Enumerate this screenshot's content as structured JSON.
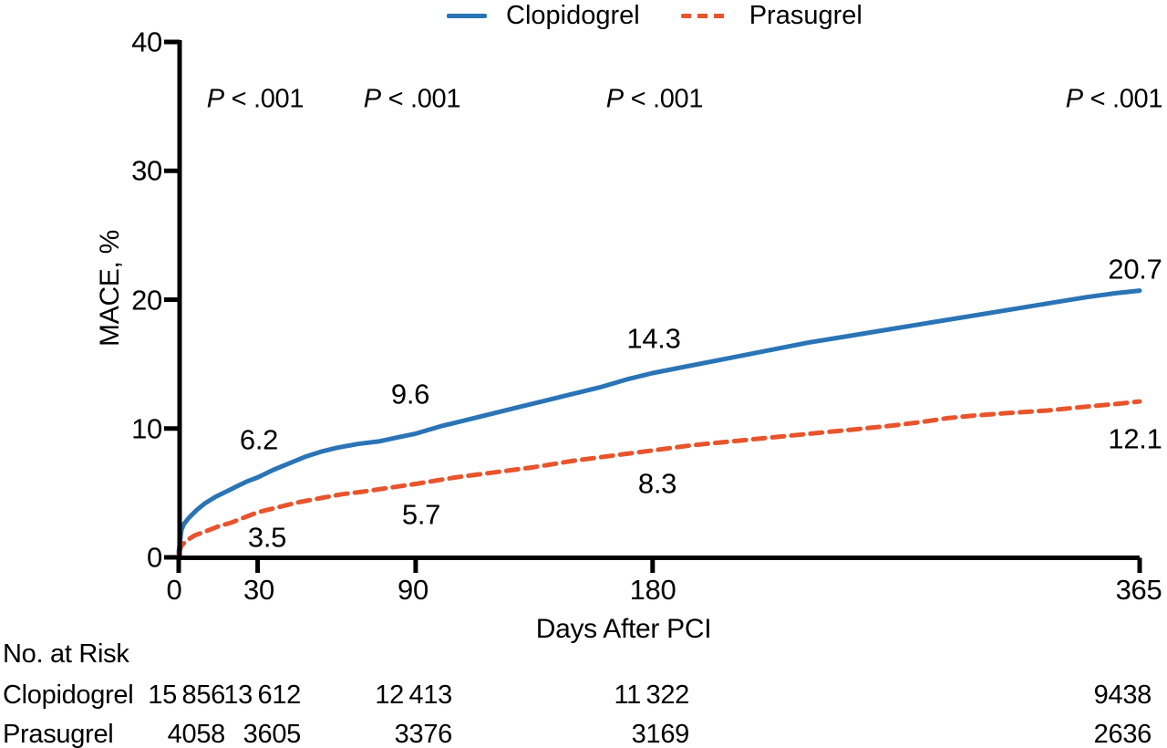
{
  "chart_data": {
    "type": "line",
    "title": "",
    "xlabel": "Days After PCI",
    "ylabel": "MACE, %",
    "xlim": [
      0,
      365
    ],
    "ylim": [
      0,
      40
    ],
    "x_ticks": [
      0,
      30,
      90,
      180,
      365
    ],
    "y_ticks": [
      0,
      10,
      20,
      30,
      40
    ],
    "grid": false,
    "legend_position": "top-center",
    "series": [
      {
        "name": "Clopidogrel",
        "color": "#2A74B6",
        "line_style": "solid",
        "labeled_values": {
          "day_30": 6.2,
          "day_90": 9.6,
          "day_180": 14.3,
          "day_365": 20.7
        },
        "points": [
          [
            0,
            0.4
          ],
          [
            1,
            2.1
          ],
          [
            2,
            2.6
          ],
          [
            4,
            3.1
          ],
          [
            7,
            3.7
          ],
          [
            10,
            4.2
          ],
          [
            14,
            4.7
          ],
          [
            18,
            5.1
          ],
          [
            22,
            5.5
          ],
          [
            26,
            5.9
          ],
          [
            30,
            6.2
          ],
          [
            36,
            6.8
          ],
          [
            42,
            7.3
          ],
          [
            48,
            7.8
          ],
          [
            54,
            8.2
          ],
          [
            60,
            8.5
          ],
          [
            68,
            8.8
          ],
          [
            76,
            9.0
          ],
          [
            83,
            9.3
          ],
          [
            90,
            9.6
          ],
          [
            100,
            10.2
          ],
          [
            110,
            10.7
          ],
          [
            120,
            11.2
          ],
          [
            130,
            11.7
          ],
          [
            140,
            12.2
          ],
          [
            150,
            12.7
          ],
          [
            160,
            13.2
          ],
          [
            170,
            13.8
          ],
          [
            180,
            14.3
          ],
          [
            195,
            14.9
          ],
          [
            210,
            15.5
          ],
          [
            225,
            16.1
          ],
          [
            240,
            16.7
          ],
          [
            255,
            17.2
          ],
          [
            270,
            17.7
          ],
          [
            285,
            18.2
          ],
          [
            300,
            18.7
          ],
          [
            315,
            19.2
          ],
          [
            330,
            19.7
          ],
          [
            345,
            20.2
          ],
          [
            356,
            20.5
          ],
          [
            365,
            20.7
          ]
        ]
      },
      {
        "name": "Prasugrel",
        "color": "#E8542C",
        "line_style": "dashed",
        "labeled_values": {
          "day_30": 3.5,
          "day_90": 5.7,
          "day_180": 8.3,
          "day_365": 12.1
        },
        "points": [
          [
            0,
            0.3
          ],
          [
            1,
            0.9
          ],
          [
            3,
            1.3
          ],
          [
            6,
            1.7
          ],
          [
            10,
            2.0
          ],
          [
            15,
            2.4
          ],
          [
            20,
            2.7
          ],
          [
            25,
            3.1
          ],
          [
            30,
            3.5
          ],
          [
            38,
            3.9
          ],
          [
            46,
            4.3
          ],
          [
            54,
            4.6
          ],
          [
            62,
            4.9
          ],
          [
            70,
            5.1
          ],
          [
            80,
            5.4
          ],
          [
            90,
            5.7
          ],
          [
            105,
            6.2
          ],
          [
            120,
            6.6
          ],
          [
            135,
            7.0
          ],
          [
            150,
            7.5
          ],
          [
            165,
            7.9
          ],
          [
            180,
            8.3
          ],
          [
            195,
            8.7
          ],
          [
            210,
            9.0
          ],
          [
            225,
            9.3
          ],
          [
            240,
            9.6
          ],
          [
            255,
            9.9
          ],
          [
            270,
            10.2
          ],
          [
            282,
            10.5
          ],
          [
            292,
            10.8
          ],
          [
            302,
            11.0
          ],
          [
            315,
            11.2
          ],
          [
            330,
            11.4
          ],
          [
            345,
            11.7
          ],
          [
            356,
            11.9
          ],
          [
            365,
            12.1
          ]
        ]
      }
    ],
    "annotations": [
      {
        "text": "P < .001",
        "at_day": 30
      },
      {
        "text": "P < .001",
        "at_day": 90
      },
      {
        "text": "P < .001",
        "at_day": 180
      },
      {
        "text": "P < .001",
        "at_day": 365
      }
    ],
    "risk_table": {
      "header": "No. at Risk",
      "days": [
        0,
        30,
        90,
        180,
        365
      ],
      "rows": [
        {
          "label": "Clopidogrel",
          "values": [
            "15 856",
            "13 612",
            "12 413",
            "11 322",
            "9438"
          ]
        },
        {
          "label": "Prasugrel",
          "values": [
            "4058",
            "3605",
            "3376",
            "3169",
            "2636"
          ]
        }
      ]
    }
  },
  "legend": {
    "items": [
      {
        "label": "Clopidogrel"
      },
      {
        "label": "Prasugrel"
      }
    ]
  },
  "axes": {
    "y_title": "MACE, %",
    "x_title": "Days After PCI",
    "y_tick_labels": [
      "40",
      "30",
      "20",
      "10",
      "0"
    ],
    "x_tick_labels": [
      "0",
      "30",
      "90",
      "180",
      "365"
    ]
  },
  "p_values": {
    "p": "P",
    "comparison": " < .001"
  },
  "curve_labels": {
    "clopidogrel": [
      "6.2",
      "9.6",
      "14.3",
      "20.7"
    ],
    "prasugrel": [
      "3.5",
      "5.7",
      "8.3",
      "12.1"
    ]
  },
  "risk_table": {
    "header": "No. at Risk",
    "rows": [
      {
        "label": "Clopidogrel",
        "values": [
          "15 856",
          "13 612",
          "12 413",
          "11 322",
          "9438"
        ]
      },
      {
        "label": "Prasugrel",
        "values": [
          "4058",
          "3605",
          "3376",
          "3169",
          "2636"
        ]
      }
    ]
  }
}
